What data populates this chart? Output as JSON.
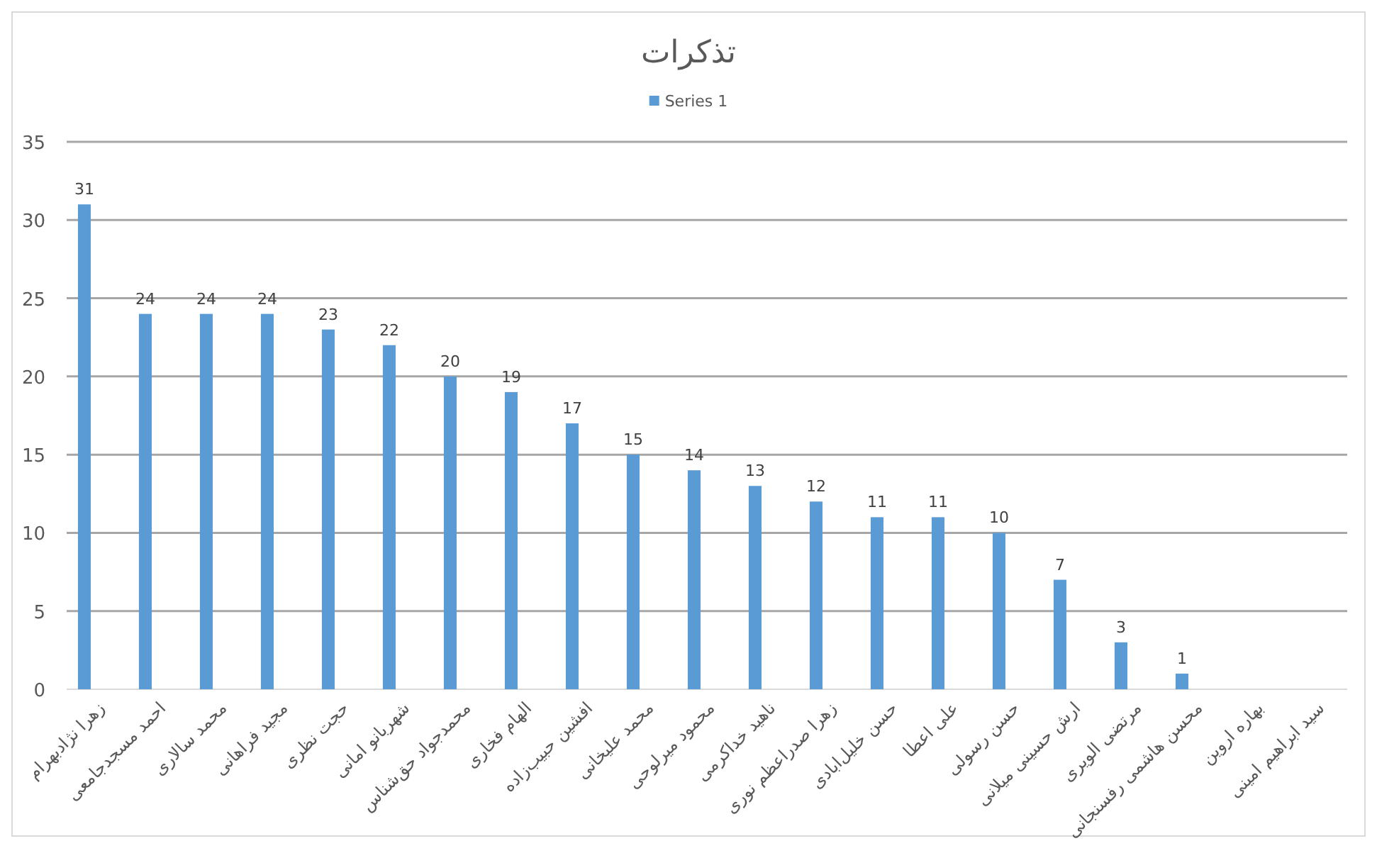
{
  "chart_data": {
    "type": "bar",
    "title": "تذکرات",
    "categories": [
      "زهرا نژادبهرام",
      "احمد مسجدجامعی",
      "محمد سالاری",
      "مجید فراهانی",
      "حجت نظری",
      "شهربانو امانی",
      "محمدجواد حق‌شناس",
      "الهام فخاری",
      "افشین حبیب‌زاده",
      "محمد علیخانی",
      "محمود میرلوحی",
      "ناهید خداکرمی",
      "زهرا صدراعظم نوری",
      "حسن خلیل‌ابادی",
      "علی اعطا",
      "حسن رسولی",
      "ارش حسینی میلانی",
      "مرتضی الویری",
      "محسن هاشمی رفسنجانی",
      "بهاره اروین",
      "سید ابراهیم امینی"
    ],
    "series": [
      {
        "name": "Series 1",
        "color": "#5b9bd5",
        "values": [
          31,
          24,
          24,
          24,
          23,
          22,
          20,
          19,
          17,
          15,
          14,
          13,
          12,
          11,
          11,
          10,
          7,
          3,
          1,
          null,
          null
        ]
      }
    ],
    "ylim": [
      0,
      35
    ],
    "yticks": [
      0,
      5,
      10,
      15,
      20,
      25,
      30,
      35
    ],
    "grid": "y",
    "legend": "top",
    "data_labels": true
  }
}
